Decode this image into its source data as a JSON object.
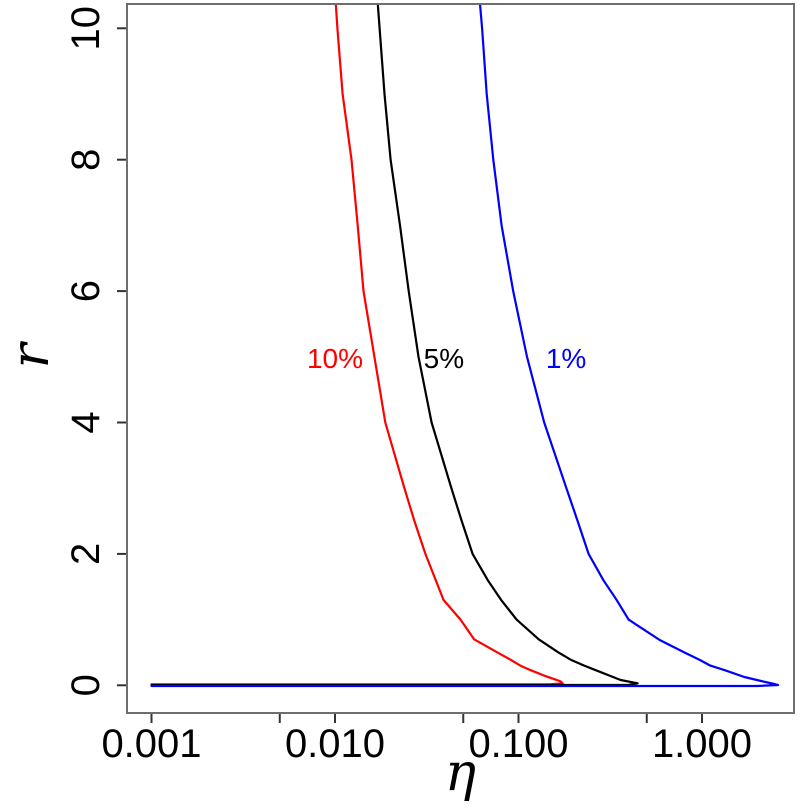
{
  "figure": {
    "description": "Contour curves of significance levels 10%, 5%, 1% in the (eta, r) plane",
    "background": "#ffffff"
  },
  "chart_data": {
    "type": "line",
    "title": "",
    "xlabel": "η",
    "ylabel": "r",
    "x_axis": {
      "label": "η",
      "scale": "log10",
      "range": [
        0.00074,
        3.2
      ],
      "ticks": [
        {
          "value": 0.001,
          "label": "0.001"
        },
        {
          "value": 0.01,
          "label": "0.010"
        },
        {
          "value": 0.1,
          "label": "0.100"
        },
        {
          "value": 1.0,
          "label": "1.000"
        }
      ],
      "minor_ticks": [
        0.005,
        0.05,
        0.5
      ]
    },
    "y_axis": {
      "label": "r",
      "scale": "linear",
      "range": [
        -0.42,
        10.37
      ],
      "ticks": [
        {
          "value": 0,
          "label": "0"
        },
        {
          "value": 2,
          "label": "2"
        },
        {
          "value": 4,
          "label": "4"
        },
        {
          "value": 6,
          "label": "6"
        },
        {
          "value": 8,
          "label": "8"
        },
        {
          "value": 10,
          "label": "10"
        }
      ]
    },
    "grid": false,
    "legend_position": "inline-annotations",
    "series": [
      {
        "name": "10%",
        "color": "#ff0000",
        "annotation": {
          "text": "10%",
          "eta": 0.01,
          "r": 4.98
        },
        "points": [
          [
            0.0101,
            10.37
          ],
          [
            0.0103,
            10.0
          ],
          [
            0.011,
            9.0
          ],
          [
            0.0123,
            8.0
          ],
          [
            0.0133,
            7.0
          ],
          [
            0.0143,
            6.0
          ],
          [
            0.0164,
            5.0
          ],
          [
            0.0188,
            4.0
          ],
          [
            0.0239,
            3.0
          ],
          [
            0.0271,
            2.5
          ],
          [
            0.0311,
            2.0
          ],
          [
            0.039,
            1.3
          ],
          [
            0.0483,
            1.0
          ],
          [
            0.0573,
            0.7
          ],
          [
            0.0767,
            0.5
          ],
          [
            0.0905,
            0.39
          ],
          [
            0.1023,
            0.3
          ],
          [
            0.1166,
            0.23
          ],
          [
            0.137,
            0.15
          ],
          [
            0.1541,
            0.1
          ],
          [
            0.1696,
            0.06
          ],
          [
            0.174,
            0.03
          ],
          [
            0.15,
            0.017
          ],
          [
            0.1,
            0.015
          ],
          [
            0.05,
            0.015
          ],
          [
            0.01,
            0.015
          ],
          [
            0.001,
            0.015
          ]
        ]
      },
      {
        "name": "5%",
        "color": "#000000",
        "annotation": {
          "text": "5%",
          "eta": 0.0392,
          "r": 4.98
        },
        "points": [
          [
            0.0171,
            10.37
          ],
          [
            0.0175,
            10.0
          ],
          [
            0.0186,
            9.0
          ],
          [
            0.0201,
            8.0
          ],
          [
            0.0226,
            7.0
          ],
          [
            0.0252,
            6.0
          ],
          [
            0.0285,
            5.0
          ],
          [
            0.0336,
            4.0
          ],
          [
            0.0431,
            3.0
          ],
          [
            0.049,
            2.5
          ],
          [
            0.0562,
            2.0
          ],
          [
            0.068,
            1.6
          ],
          [
            0.0804,
            1.3
          ],
          [
            0.0977,
            1.0
          ],
          [
            0.1288,
            0.7
          ],
          [
            0.165,
            0.5
          ],
          [
            0.1925,
            0.39
          ],
          [
            0.228,
            0.3
          ],
          [
            0.2633,
            0.23
          ],
          [
            0.311,
            0.15
          ],
          [
            0.36,
            0.08
          ],
          [
            0.4458,
            0.03
          ],
          [
            0.4,
            0.008
          ],
          [
            0.3,
            0.005
          ],
          [
            0.2,
            0.005
          ],
          [
            0.1,
            0.005
          ],
          [
            0.01,
            0.005
          ],
          [
            0.001,
            0.005
          ]
        ]
      },
      {
        "name": "1%",
        "color": "#0000ff",
        "annotation": {
          "text": "1%",
          "eta": 0.1816,
          "r": 4.98
        },
        "points": [
          [
            0.0617,
            10.37
          ],
          [
            0.0633,
            10.0
          ],
          [
            0.0671,
            9.0
          ],
          [
            0.0729,
            8.0
          ],
          [
            0.0809,
            7.0
          ],
          [
            0.0936,
            6.0
          ],
          [
            0.1112,
            5.0
          ],
          [
            0.1381,
            4.0
          ],
          [
            0.1824,
            3.0
          ],
          [
            0.21,
            2.5
          ],
          [
            0.241,
            2.0
          ],
          [
            0.29,
            1.6
          ],
          [
            0.3425,
            1.3
          ],
          [
            0.398,
            1.0
          ],
          [
            0.5881,
            0.69
          ],
          [
            0.8,
            0.5
          ],
          [
            0.9737,
            0.385
          ],
          [
            1.11,
            0.3
          ],
          [
            1.331,
            0.23
          ],
          [
            1.7,
            0.126
          ],
          [
            2.1,
            0.065
          ],
          [
            2.48,
            0.02
          ],
          [
            2.6,
            0.005
          ],
          [
            2.0,
            -0.01
          ],
          [
            1.0,
            -0.01
          ],
          [
            0.1,
            -0.01
          ],
          [
            0.01,
            -0.01
          ],
          [
            0.001,
            -0.01
          ]
        ]
      }
    ]
  }
}
